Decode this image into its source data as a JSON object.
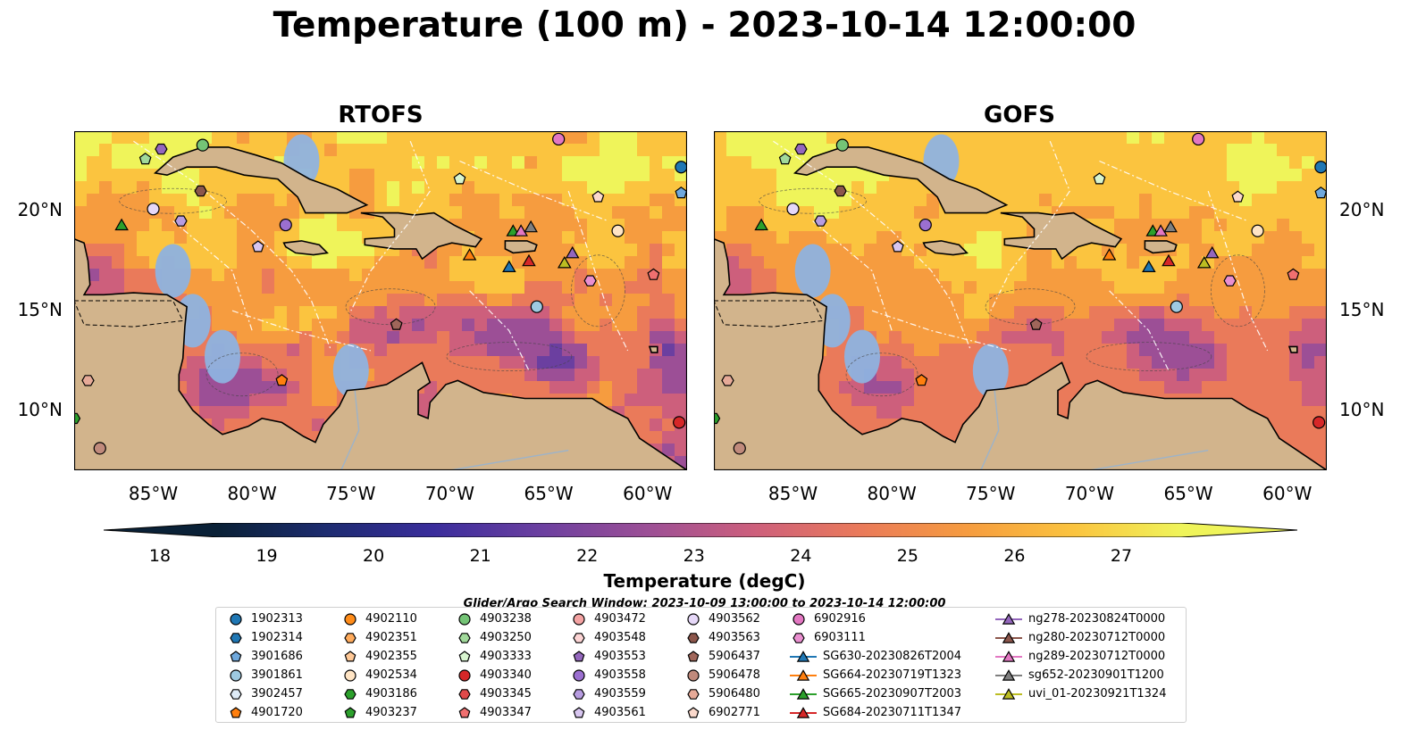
{
  "title": "Temperature (100 m) - 2023-10-14 12:00:00",
  "panels": [
    {
      "title": "RTOFS"
    },
    {
      "title": "GOFS"
    }
  ],
  "map": {
    "lon_range": [
      -89,
      -58
    ],
    "lat_range": [
      7,
      24
    ],
    "lon_ticks": [
      "85°W",
      "80°W",
      "75°W",
      "70°W",
      "65°W",
      "60°W"
    ],
    "lat_ticks": [
      "20°N",
      "15°N",
      "10°N"
    ],
    "colors": {
      "land": "#d2b48c",
      "shelf": "#8fb3e0",
      "pacific": "#04263a",
      "coast": "#000000",
      "eez": "#ffffff"
    }
  },
  "colorbar": {
    "label": "Temperature (degC)",
    "ticks": [
      "18",
      "19",
      "20",
      "21",
      "22",
      "23",
      "24",
      "25",
      "26",
      "27"
    ],
    "range": [
      18,
      27
    ],
    "extend": "both",
    "colormap": [
      "#0a2137",
      "#1d2c70",
      "#3a2d9c",
      "#6b3fa0",
      "#9c4f96",
      "#cd5f7c",
      "#ea7a5a",
      "#f69c3f",
      "#fbc43f",
      "#eff45a"
    ]
  },
  "search_window": "Glider/Argo Search Window: 2023-10-09 13:00:00 to 2023-10-14 12:00:00",
  "legend": {
    "columns": [
      [
        {
          "label": "1902313",
          "marker": "circle",
          "color": "#1f77b4"
        },
        {
          "label": "1902314",
          "marker": "hexagon",
          "color": "#1f77b4"
        },
        {
          "label": "3901686",
          "marker": "pentagon",
          "color": "#6fa8dc"
        },
        {
          "label": "3901861",
          "marker": "circle",
          "color": "#9ecae1"
        },
        {
          "label": "3902457",
          "marker": "hexagon",
          "color": "#deebf7"
        },
        {
          "label": "4901720",
          "marker": "pentagon",
          "color": "#ff7f0e"
        }
      ],
      [
        {
          "label": "4902110",
          "marker": "circle",
          "color": "#ff8c1a"
        },
        {
          "label": "4902351",
          "marker": "hexagon",
          "color": "#ffab5c"
        },
        {
          "label": "4902355",
          "marker": "pentagon",
          "color": "#ffc896"
        },
        {
          "label": "4902534",
          "marker": "circle",
          "color": "#ffe4c4"
        },
        {
          "label": "4903186",
          "marker": "hexagon",
          "color": "#2ca02c"
        },
        {
          "label": "4903237",
          "marker": "pentagon",
          "color": "#2ca02c"
        }
      ],
      [
        {
          "label": "4903238",
          "marker": "circle",
          "color": "#74c476"
        },
        {
          "label": "4903250",
          "marker": "hexagon",
          "color": "#a1d99b"
        },
        {
          "label": "4903333",
          "marker": "pentagon",
          "color": "#d9f5d0"
        },
        {
          "label": "4903340",
          "marker": "circle",
          "color": "#d62728"
        },
        {
          "label": "4903345",
          "marker": "hexagon",
          "color": "#e0494a"
        },
        {
          "label": "4903347",
          "marker": "pentagon",
          "color": "#f07070"
        }
      ],
      [
        {
          "label": "4903472",
          "marker": "circle",
          "color": "#f4a3a3"
        },
        {
          "label": "4903548",
          "marker": "hexagon",
          "color": "#fcd4d4"
        },
        {
          "label": "4903553",
          "marker": "pentagon",
          "color": "#9467bd"
        },
        {
          "label": "4903558",
          "marker": "circle",
          "color": "#9b6fd0"
        },
        {
          "label": "4903559",
          "marker": "hexagon",
          "color": "#b79ce0"
        },
        {
          "label": "4903561",
          "marker": "pentagon",
          "color": "#d8c6f0"
        }
      ],
      [
        {
          "label": "4903562",
          "marker": "circle",
          "color": "#e6d8f8"
        },
        {
          "label": "4903563",
          "marker": "hexagon",
          "color": "#8c564b"
        },
        {
          "label": "5906437",
          "marker": "pentagon",
          "color": "#a0665a"
        },
        {
          "label": "5906478",
          "marker": "circle",
          "color": "#c08a7c"
        },
        {
          "label": "5906480",
          "marker": "hexagon",
          "color": "#e6aa98"
        },
        {
          "label": "6902771",
          "marker": "pentagon",
          "color": "#fbd9cc"
        }
      ],
      [
        {
          "label": "6902916",
          "marker": "circle",
          "color": "#e377c2"
        },
        {
          "label": "6903111",
          "marker": "hexagon",
          "color": "#ea8fd0"
        },
        {
          "label": "SG630-20230826T2004",
          "marker": "triangle",
          "color": "#1f77b4"
        },
        {
          "label": "SG664-20230719T1323",
          "marker": "triangle",
          "color": "#ff7f0e"
        },
        {
          "label": "SG665-20230907T2003",
          "marker": "triangle",
          "color": "#2ca02c"
        },
        {
          "label": "SG684-20230711T1347",
          "marker": "triangle",
          "color": "#d62728"
        }
      ],
      [
        {
          "label": "ng278-20230824T0000",
          "marker": "triangle",
          "color": "#9467bd"
        },
        {
          "label": "ng280-20230712T0000",
          "marker": "triangle",
          "color": "#8c564b"
        },
        {
          "label": "ng289-20230712T0000",
          "marker": "triangle",
          "color": "#e377c2"
        },
        {
          "label": "sg652-20230901T1200",
          "marker": "triangle",
          "color": "#7f7f7f"
        },
        {
          "label": "uvi_01-20230921T1324",
          "marker": "triangle",
          "color": "#bcbd22"
        }
      ]
    ]
  }
}
